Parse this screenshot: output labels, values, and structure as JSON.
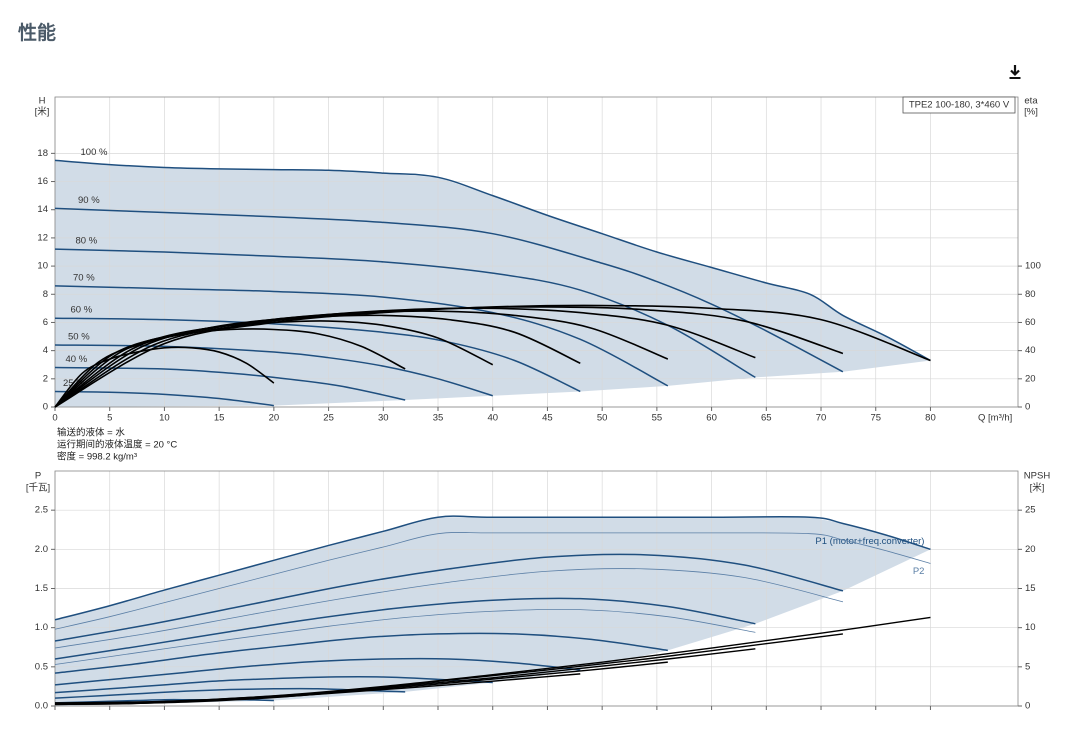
{
  "header": {
    "title": "性能"
  },
  "chart_data": [
    {
      "type": "line",
      "model_label": "TPE2 100-180, 3*460 V",
      "xlabel": "Q [m³/h]",
      "ylabel": [
        "H",
        "[米]"
      ],
      "y2label": [
        "eta",
        "[%]"
      ],
      "notes": [
        "输送的液体 = 水",
        "运行期间的液体温度 = 20 °C",
        "密度 = 998.2 kg/m³"
      ],
      "xlim": [
        0,
        88
      ],
      "xticks": [
        0,
        5,
        10,
        15,
        20,
        25,
        30,
        35,
        40,
        45,
        50,
        55,
        60,
        65,
        70,
        75,
        80
      ],
      "xtick_labels": true,
      "ylim": [
        0,
        22
      ],
      "yticks": [
        0,
        2,
        4,
        6,
        8,
        10,
        12,
        14,
        16,
        18
      ],
      "y2lim": [
        0,
        220
      ],
      "y2ticks": [
        0,
        20,
        40,
        60,
        80,
        100
      ],
      "grid": true,
      "shade_color": "#c9d6e3",
      "series_label_position": "start",
      "series": [
        {
          "name": "100 %",
          "color": "#1f4f7f",
          "width": 1.5,
          "x": [
            0,
            5,
            10,
            15,
            20,
            25,
            30,
            35,
            40,
            45,
            50,
            55,
            60,
            65,
            69,
            72,
            76,
            80
          ],
          "values": [
            17.5,
            17.2,
            17.0,
            16.9,
            16.85,
            16.8,
            16.6,
            16.3,
            15.0,
            13.6,
            12.3,
            11.0,
            9.9,
            8.8,
            8.0,
            6.5,
            5.0,
            3.3
          ]
        },
        {
          "name": "90 %",
          "color": "#1f4f7f",
          "width": 1.5,
          "x": [
            0,
            10,
            20,
            30,
            40,
            50,
            55,
            60,
            65,
            72
          ],
          "values": [
            14.1,
            13.8,
            13.5,
            13.1,
            12.3,
            10.2,
            8.9,
            7.3,
            5.4,
            2.5
          ]
        },
        {
          "name": "80 %",
          "color": "#1f4f7f",
          "width": 1.5,
          "x": [
            0,
            10,
            20,
            30,
            40,
            48,
            56,
            64
          ],
          "values": [
            11.2,
            11.0,
            10.7,
            10.3,
            9.5,
            8.3,
            5.8,
            2.1
          ]
        },
        {
          "name": "70 %",
          "color": "#1f4f7f",
          "width": 1.5,
          "x": [
            0,
            10,
            20,
            30,
            40,
            48,
            56
          ],
          "values": [
            8.6,
            8.4,
            8.2,
            7.8,
            6.7,
            4.8,
            1.5
          ]
        },
        {
          "name": "60 %",
          "color": "#1f4f7f",
          "width": 1.5,
          "x": [
            0,
            10,
            20,
            30,
            36,
            42,
            48
          ],
          "values": [
            6.3,
            6.2,
            5.9,
            5.3,
            4.6,
            3.3,
            1.1
          ]
        },
        {
          "name": "50 %",
          "color": "#1f4f7f",
          "width": 1.5,
          "x": [
            0,
            10,
            20,
            25,
            30,
            35,
            40
          ],
          "values": [
            4.4,
            4.3,
            3.9,
            3.5,
            2.9,
            2.0,
            0.8
          ]
        },
        {
          "name": "40 %",
          "color": "#1f4f7f",
          "width": 1.5,
          "x": [
            0,
            10,
            16,
            20,
            26,
            32
          ],
          "values": [
            2.8,
            2.7,
            2.4,
            2.1,
            1.5,
            0.5
          ]
        },
        {
          "name": "25 %",
          "color": "#1f4f7f",
          "width": 1.5,
          "x": [
            0,
            5,
            10,
            15,
            20
          ],
          "values": [
            1.1,
            1.05,
            0.9,
            0.6,
            0.1
          ]
        },
        {
          "color": "#000000",
          "width": 1.6,
          "axis": "y2",
          "x": [
            0,
            10,
            20,
            30,
            40,
            50,
            60,
            70,
            80
          ],
          "values": [
            0,
            45,
            60,
            67,
            71,
            72,
            70,
            62,
            33
          ]
        },
        {
          "color": "#000000",
          "width": 1.6,
          "axis": "y2",
          "x": [
            0,
            9,
            18,
            27,
            36,
            45,
            54,
            63,
            72
          ],
          "values": [
            0,
            44,
            59,
            66,
            70,
            71,
            69,
            61,
            38
          ]
        },
        {
          "color": "#000000",
          "width": 1.6,
          "axis": "y2",
          "x": [
            0,
            8,
            16,
            24,
            32,
            40,
            48,
            56,
            64
          ],
          "values": [
            0,
            43,
            58,
            65,
            69,
            70,
            67,
            58,
            35
          ]
        },
        {
          "color": "#000000",
          "width": 1.6,
          "axis": "y2",
          "x": [
            0,
            7,
            14,
            21,
            28,
            35,
            42,
            49,
            56
          ],
          "values": [
            0,
            41,
            56,
            63,
            67,
            68,
            65,
            56,
            34
          ]
        },
        {
          "color": "#000000",
          "width": 1.6,
          "axis": "y2",
          "x": [
            0,
            6,
            12,
            18,
            24,
            30,
            36,
            42,
            48
          ],
          "values": [
            0,
            39,
            53,
            60,
            64,
            65,
            62,
            53,
            31
          ]
        },
        {
          "color": "#000000",
          "width": 1.6,
          "axis": "y2",
          "x": [
            0,
            5,
            10,
            15,
            20,
            25,
            30,
            35,
            40
          ],
          "values": [
            0,
            36,
            50,
            57,
            60,
            61,
            58,
            49,
            30
          ]
        },
        {
          "color": "#000000",
          "width": 1.6,
          "axis": "y2",
          "x": [
            0,
            4,
            8,
            12,
            16,
            20,
            24,
            28,
            32
          ],
          "values": [
            0,
            32,
            45,
            52,
            55,
            55,
            52,
            43,
            27
          ]
        },
        {
          "color": "#000000",
          "width": 1.6,
          "axis": "y2",
          "x": [
            0,
            2.5,
            5,
            7.5,
            10,
            12.5,
            15,
            17.5,
            20
          ],
          "values": [
            0,
            24,
            34,
            39,
            42,
            42,
            39,
            31,
            17
          ]
        }
      ]
    },
    {
      "type": "line",
      "ylabel": [
        "P",
        "[千瓦]"
      ],
      "y2label": [
        "NPSH",
        "[米]"
      ],
      "xlim": [
        0,
        88
      ],
      "xticks": [
        0,
        5,
        10,
        15,
        20,
        25,
        30,
        35,
        40,
        45,
        50,
        55,
        60,
        65,
        70,
        75,
        80
      ],
      "xtick_labels": false,
      "ylim": [
        0,
        3.0
      ],
      "yticks": [
        {
          "value": 0,
          "label": "0.0"
        },
        0.5,
        {
          "value": 1,
          "label": "1.0"
        },
        1.5,
        {
          "value": 2,
          "label": "2.0"
        },
        2.5
      ],
      "y2lim": [
        0,
        30
      ],
      "y2ticks": [
        0,
        5,
        10,
        15,
        20,
        25
      ],
      "grid": true,
      "shade_color": "#c9d6e3",
      "series_label_position": "end",
      "series": [
        {
          "name": "P1 (motor+freq.converter)",
          "label_side": "above",
          "color": "#1f4f7f",
          "width": 1.5,
          "x": [
            0,
            5,
            10,
            15,
            20,
            25,
            30,
            35,
            40,
            50,
            60,
            69,
            72,
            76,
            80
          ],
          "values": [
            1.1,
            1.28,
            1.48,
            1.67,
            1.86,
            2.05,
            2.23,
            2.41,
            2.41,
            2.41,
            2.41,
            2.41,
            2.33,
            2.18,
            2.0
          ]
        },
        {
          "name": "P2",
          "label_side": "below",
          "color": "#5b7fa6",
          "width": 0.8,
          "x": [
            0,
            5,
            10,
            15,
            20,
            25,
            30,
            35,
            40,
            50,
            60,
            69,
            72,
            76,
            80
          ],
          "values": [
            0.98,
            1.14,
            1.32,
            1.5,
            1.68,
            1.86,
            2.03,
            2.2,
            2.21,
            2.21,
            2.21,
            2.2,
            2.12,
            1.98,
            1.82
          ]
        },
        {
          "color": "#1f4f7f",
          "width": 1.5,
          "x": [
            0,
            9,
            18,
            27,
            36,
            45,
            54,
            63,
            72
          ],
          "values": [
            0.83,
            1.05,
            1.3,
            1.55,
            1.75,
            1.9,
            1.93,
            1.8,
            1.47
          ]
        },
        {
          "color": "#5b7fa6",
          "width": 0.8,
          "x": [
            0,
            9,
            18,
            27,
            36,
            45,
            54,
            63,
            72
          ],
          "values": [
            0.74,
            0.94,
            1.17,
            1.39,
            1.58,
            1.72,
            1.75,
            1.64,
            1.33
          ]
        },
        {
          "color": "#1f4f7f",
          "width": 1.5,
          "x": [
            0,
            8,
            16,
            24,
            32,
            40,
            48,
            56,
            64
          ],
          "values": [
            0.6,
            0.77,
            0.95,
            1.12,
            1.26,
            1.35,
            1.37,
            1.27,
            1.05
          ]
        },
        {
          "color": "#5b7fa6",
          "width": 0.8,
          "x": [
            0,
            8,
            16,
            24,
            32,
            40,
            48,
            56,
            64
          ],
          "values": [
            0.53,
            0.69,
            0.85,
            1.0,
            1.13,
            1.21,
            1.23,
            1.14,
            0.94
          ]
        },
        {
          "color": "#1f4f7f",
          "width": 1.5,
          "x": [
            0,
            7,
            14,
            21,
            28,
            35,
            42,
            49,
            56
          ],
          "values": [
            0.42,
            0.53,
            0.66,
            0.77,
            0.87,
            0.92,
            0.92,
            0.85,
            0.71
          ]
        },
        {
          "color": "#1f4f7f",
          "width": 1.5,
          "x": [
            0,
            6,
            12,
            18,
            24,
            30,
            36,
            42,
            48
          ],
          "values": [
            0.27,
            0.35,
            0.43,
            0.51,
            0.57,
            0.6,
            0.6,
            0.55,
            0.46
          ]
        },
        {
          "color": "#1f4f7f",
          "width": 1.5,
          "x": [
            0,
            5,
            10,
            15,
            20,
            25,
            30,
            35,
            40
          ],
          "values": [
            0.17,
            0.22,
            0.27,
            0.32,
            0.35,
            0.37,
            0.37,
            0.34,
            0.3
          ]
        },
        {
          "color": "#1f4f7f",
          "width": 1.5,
          "x": [
            0,
            4,
            8,
            12,
            16,
            20,
            24,
            28,
            32
          ],
          "values": [
            0.1,
            0.13,
            0.16,
            0.19,
            0.21,
            0.22,
            0.22,
            0.2,
            0.18
          ]
        },
        {
          "color": "#1f4f7f",
          "width": 1.5,
          "x": [
            0,
            2.5,
            5,
            7.5,
            10,
            12.5,
            15,
            17.5,
            20
          ],
          "values": [
            0.04,
            0.05,
            0.06,
            0.07,
            0.08,
            0.08,
            0.08,
            0.08,
            0.07
          ]
        },
        {
          "color": "#000000",
          "width": 1.4,
          "axis": "y2",
          "x": [
            0,
            10,
            20,
            30,
            40,
            50,
            60,
            70,
            80
          ],
          "values": [
            0.4,
            0.6,
            1.3,
            2.5,
            4.0,
            5.6,
            7.4,
            9.3,
            11.3
          ]
        },
        {
          "color": "#000000",
          "width": 1.4,
          "axis": "y2",
          "x": [
            0,
            9,
            18,
            27,
            36,
            45,
            54,
            63,
            72
          ],
          "values": [
            0.3,
            0.5,
            1.1,
            2.0,
            3.3,
            4.6,
            6.0,
            7.6,
            9.2
          ]
        },
        {
          "color": "#000000",
          "width": 1.4,
          "axis": "y2",
          "x": [
            0,
            8,
            16,
            24,
            32,
            40,
            48,
            56,
            64
          ],
          "values": [
            0.3,
            0.4,
            0.9,
            1.6,
            2.6,
            3.6,
            4.8,
            6.0,
            7.3
          ]
        },
        {
          "color": "#000000",
          "width": 1.4,
          "axis": "y2",
          "x": [
            0,
            7,
            14,
            21,
            28,
            35,
            42,
            49,
            56
          ],
          "values": [
            0.2,
            0.3,
            0.7,
            1.2,
            2.0,
            2.8,
            3.7,
            4.6,
            5.6
          ]
        },
        {
          "color": "#000000",
          "width": 1.4,
          "axis": "y2",
          "x": [
            0,
            6,
            12,
            18,
            24,
            30,
            36,
            42,
            48
          ],
          "values": [
            0.2,
            0.3,
            0.5,
            0.9,
            1.5,
            2.1,
            2.7,
            3.4,
            4.1
          ]
        }
      ]
    }
  ]
}
